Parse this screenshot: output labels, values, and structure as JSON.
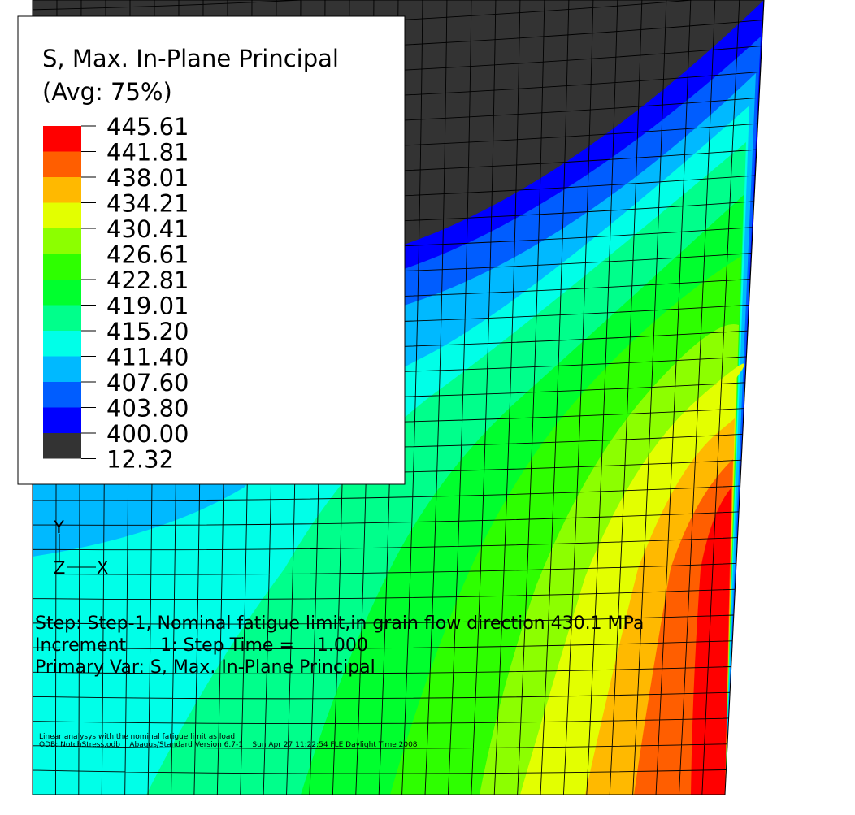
{
  "legend": {
    "title": [
      "S, Max. In-Plane Principal",
      "(Avg: 75%)"
    ],
    "values": [
      "445.61",
      "441.81",
      "438.01",
      "434.21",
      "430.41",
      "426.61",
      "422.81",
      "419.01",
      "415.20",
      "411.40",
      "407.60",
      "403.80",
      "400.00",
      "12.32"
    ],
    "colors": [
      "#ff0000",
      "#ff5e00",
      "#ffb900",
      "#e3ff00",
      "#8cff00",
      "#2eff00",
      "#00ff2e",
      "#00ff8b",
      "#00ffe8",
      "#00b9ff",
      "#005dff",
      "#0000ff",
      "#333333"
    ]
  },
  "triad": {
    "y": "Y",
    "z": "Z",
    "x": "X"
  },
  "info": [
    "Step: Step-1, Nominal fatigue limit,in grain flow direction 430.1 MPa",
    "Increment      1: Step Time =    1.000",
    "Primary Var: S, Max. In-Plane Principal"
  ],
  "footer": [
    "Linear analysys with the nominal fatigue limit as load",
    "ODB: NotchStress.odb    Abaqus/Standard Version 6.7-1    Sun Apr 27 11:22:54 FLE Daylight Time 2008"
  ]
}
